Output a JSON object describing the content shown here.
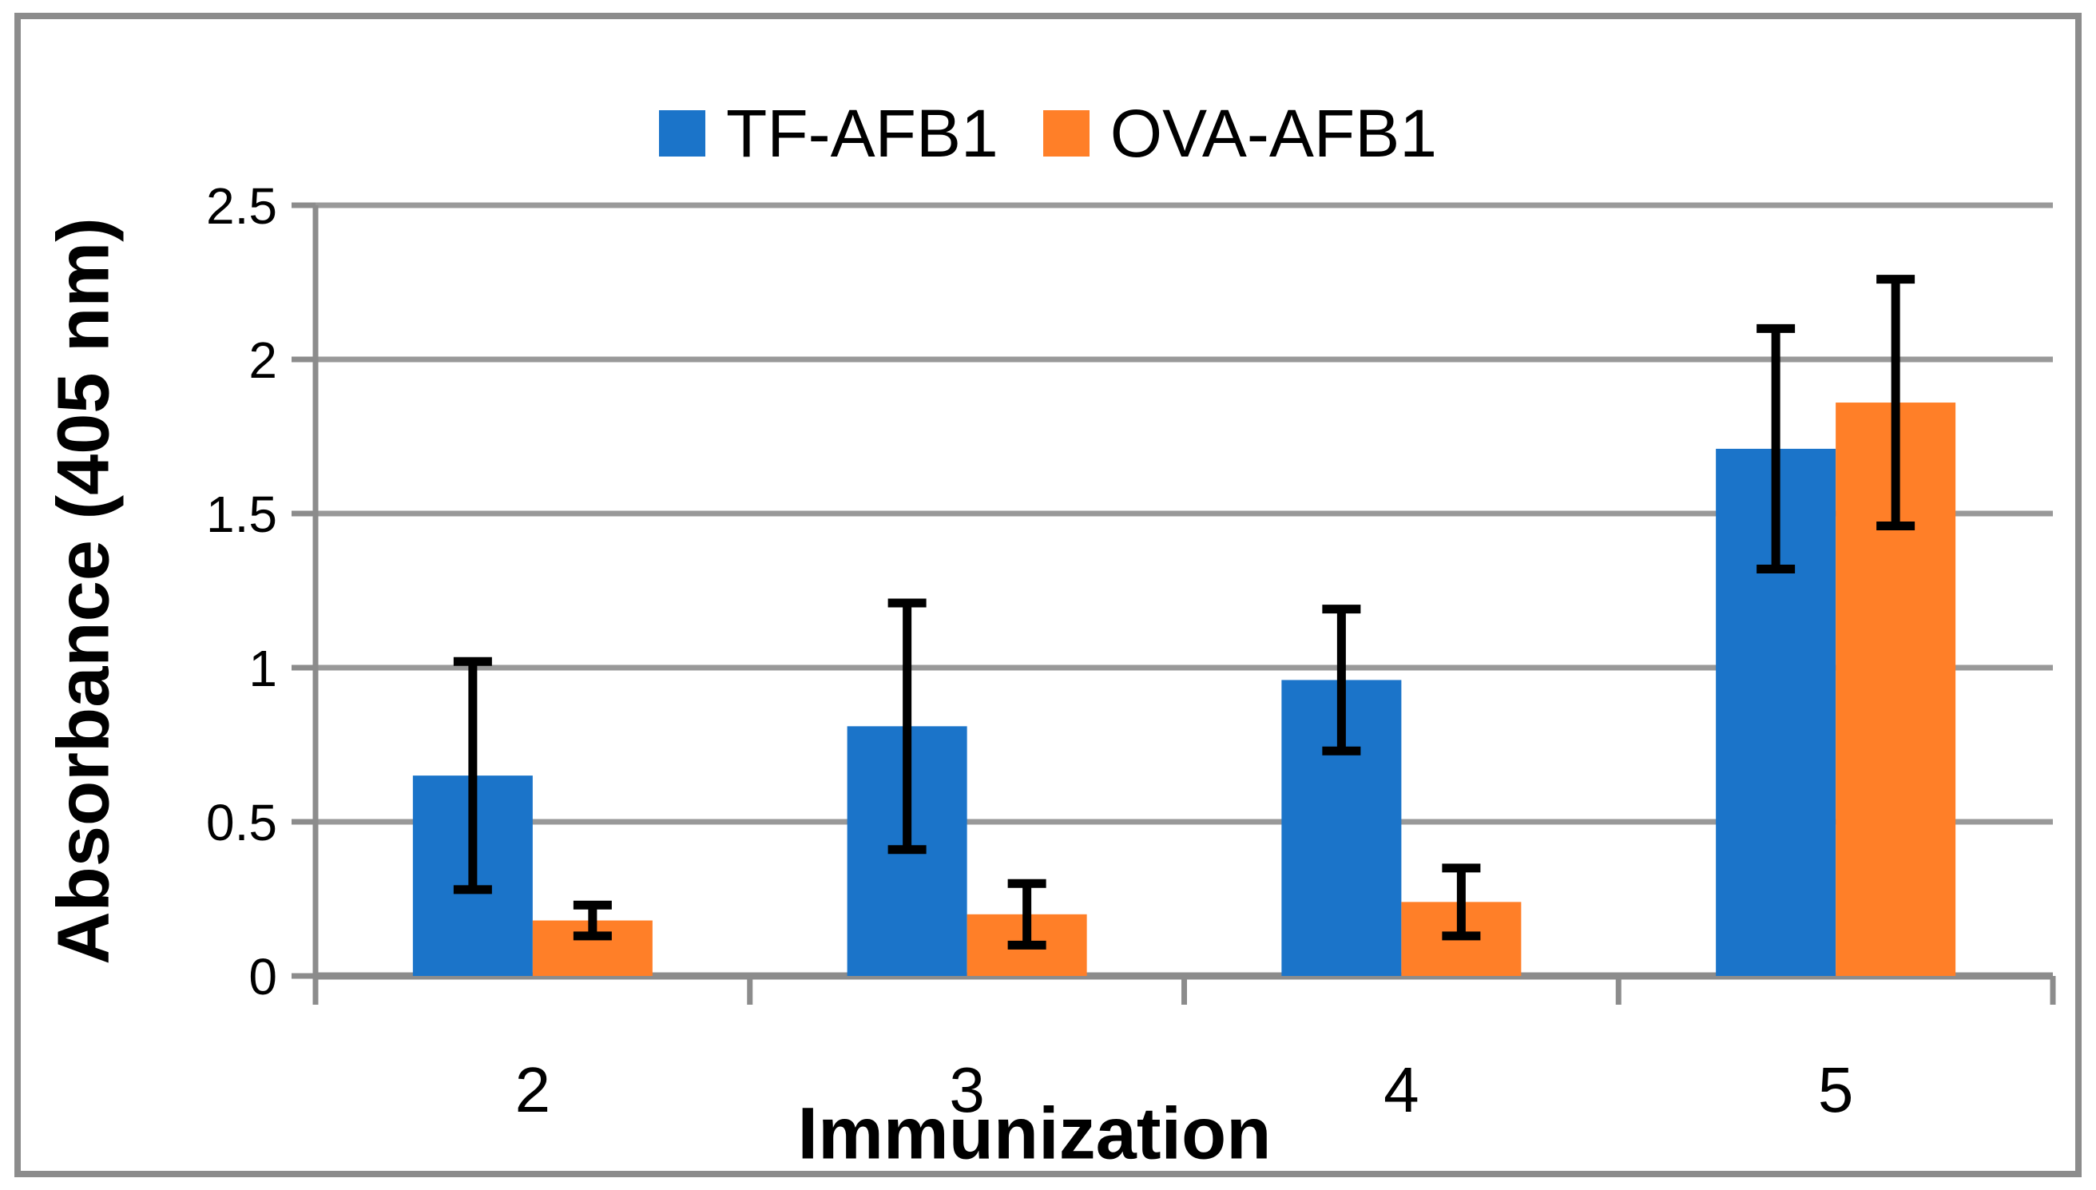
{
  "figure": {
    "background": "#ffffff",
    "border_color": "#8c8c8c"
  },
  "chart_data": {
    "type": "bar",
    "title": "",
    "xlabel": "Immunization",
    "ylabel": "Absorbance (405 nm)",
    "categories": [
      "2",
      "3",
      "4",
      "5"
    ],
    "series": [
      {
        "name": "TF-AFB1",
        "color": "#1b74c9",
        "values": [
          0.65,
          0.81,
          0.96,
          1.71
        ],
        "errors": [
          0.37,
          0.4,
          0.23,
          0.39
        ]
      },
      {
        "name": "OVA-AFB1",
        "color": "#ff7f28",
        "values": [
          0.18,
          0.2,
          0.24,
          1.86
        ],
        "errors": [
          0.05,
          0.1,
          0.11,
          0.4
        ]
      }
    ],
    "ylim": [
      0,
      2.5
    ],
    "yticks": [
      0,
      0.5,
      1,
      1.5,
      2,
      2.5
    ],
    "ytick_labels": [
      "0",
      "0.5",
      "1",
      "1.5",
      "2",
      "2.5"
    ],
    "grid": "horizontal",
    "gridline_color": "#999999",
    "axis_color": "#8c8c8c",
    "error_bar_color": "#000000",
    "text_color": "#000000",
    "legend_position": "top-center"
  }
}
